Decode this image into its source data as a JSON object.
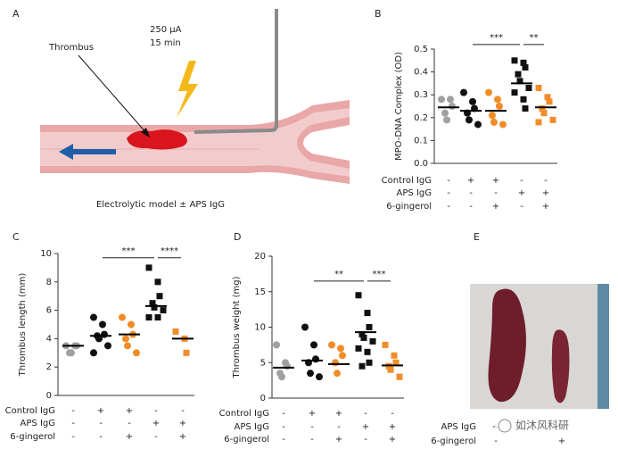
{
  "panel_a": {
    "label": "A",
    "current": "250 μA",
    "duration": "15 min",
    "thrombus": "Thrombus",
    "caption": "Electrolytic model ± APS IgG"
  },
  "chart_data": [
    {
      "type": "scatter",
      "label": "B",
      "ylabel": "MPO-DNA Complex (OD)",
      "ylim": [
        0,
        0.5
      ],
      "yticks": [
        {
          "value": 0,
          "label": "0.0"
        },
        0.1,
        0.2,
        0.3,
        0.4,
        0.5
      ],
      "series": [
        {
          "color": "#a0a0a0",
          "marker": "circle",
          "values": [
            0.28,
            0.28,
            0.25,
            0.22,
            0.19
          ],
          "mean": 0.245
        },
        {
          "color": "#111111",
          "marker": "circle",
          "values": [
            0.31,
            0.27,
            0.24,
            0.22,
            0.19,
            0.17
          ],
          "mean": 0.23
        },
        {
          "color": "#f28c28",
          "marker": "circle",
          "values": [
            0.31,
            0.28,
            0.25,
            0.21,
            0.18,
            0.17
          ],
          "mean": 0.23
        },
        {
          "color": "#111111",
          "marker": "square",
          "values": [
            0.45,
            0.44,
            0.42,
            0.39,
            0.36,
            0.33,
            0.31,
            0.28,
            0.24
          ],
          "mean": 0.35
        },
        {
          "color": "#f28c28",
          "marker": "square",
          "values": [
            0.33,
            0.29,
            0.27,
            0.24,
            0.22,
            0.19,
            0.18
          ],
          "mean": 0.245
        }
      ],
      "conditions": [
        {
          "name": "Control IgG",
          "signs": [
            "-",
            "+",
            "+",
            "-",
            "-"
          ]
        },
        {
          "name": "APS IgG",
          "signs": [
            "-",
            "-",
            "-",
            "+",
            "+"
          ]
        },
        {
          "name": "6-gingerol",
          "signs": [
            "-",
            "-",
            "+",
            "-",
            "+"
          ]
        }
      ],
      "annotations": [
        {
          "from": 1,
          "to": 3,
          "y": 0.52,
          "label": "***"
        },
        {
          "from": 3,
          "to": 4,
          "y": 0.52,
          "label": "**"
        }
      ]
    },
    {
      "type": "scatter",
      "label": "C",
      "ylabel": "Thrombus length  (mm)",
      "ylim": [
        0,
        10
      ],
      "yticks": [
        0,
        2,
        4,
        6,
        8,
        10
      ],
      "series": [
        {
          "color": "#a0a0a0",
          "marker": "circle",
          "values": [
            3.5,
            3.5,
            3.5,
            3,
            3
          ],
          "mean": 3.5
        },
        {
          "color": "#111111",
          "marker": "circle",
          "values": [
            5.5,
            5,
            4.3,
            4.2,
            4,
            3.5,
            3
          ],
          "mean": 4.2
        },
        {
          "color": "#f28c28",
          "marker": "circle",
          "values": [
            5.5,
            5,
            4.3,
            4,
            3.5,
            3
          ],
          "mean": 4.3
        },
        {
          "color": "#111111",
          "marker": "square",
          "values": [
            9,
            8,
            7,
            6.5,
            6.2,
            6,
            5.5,
            5.5
          ],
          "mean": 6.3
        },
        {
          "color": "#f28c28",
          "marker": "square",
          "values": [
            4.5,
            4,
            3
          ],
          "mean": 4
        }
      ],
      "conditions": [
        {
          "name": "Control IgG",
          "signs": [
            "-",
            "+",
            "+",
            "-",
            "-"
          ]
        },
        {
          "name": "APS IgG",
          "signs": [
            "-",
            "-",
            "-",
            "+",
            "+"
          ]
        },
        {
          "name": "6-gingerol",
          "signs": [
            "-",
            "-",
            "+",
            "-",
            "+"
          ]
        }
      ],
      "annotations": [
        {
          "from": 1,
          "to": 3,
          "y": 9.7,
          "label": "***"
        },
        {
          "from": 3,
          "to": 4,
          "y": 9.7,
          "label": "****"
        }
      ]
    },
    {
      "type": "scatter",
      "label": "D",
      "ylabel": "Thrombus weight (mg)",
      "ylim": [
        0,
        20
      ],
      "yticks": [
        0,
        5,
        10,
        15,
        20
      ],
      "series": [
        {
          "color": "#a0a0a0",
          "marker": "circle",
          "values": [
            7.5,
            5,
            4.5,
            3.5,
            3
          ],
          "mean": 4.3
        },
        {
          "color": "#111111",
          "marker": "circle",
          "values": [
            10,
            7.5,
            5.5,
            5,
            3.5,
            3
          ],
          "mean": 5.3
        },
        {
          "color": "#f28c28",
          "marker": "circle",
          "values": [
            7.5,
            7,
            6,
            5,
            3.5
          ],
          "mean": 4.8
        },
        {
          "color": "#111111",
          "marker": "square",
          "values": [
            14.5,
            12,
            10,
            9,
            8.5,
            8,
            7,
            6.5,
            5,
            4.5
          ],
          "mean": 9.3
        },
        {
          "color": "#f28c28",
          "marker": "square",
          "values": [
            7.5,
            6,
            5,
            4.5,
            4,
            3
          ],
          "mean": 4.6
        }
      ],
      "conditions": [
        {
          "name": "Control IgG",
          "signs": [
            "-",
            "+",
            "+",
            "-",
            "-"
          ]
        },
        {
          "name": "APS IgG",
          "signs": [
            "-",
            "-",
            "-",
            "+",
            "+"
          ]
        },
        {
          "name": "6-gingerol",
          "signs": [
            "-",
            "-",
            "+",
            "-",
            "+"
          ]
        }
      ],
      "annotations": [
        {
          "from": 1,
          "to": 3,
          "y": 16.5,
          "label": "**"
        },
        {
          "from": 3,
          "to": 4,
          "y": 16.5,
          "label": "***"
        }
      ]
    }
  ],
  "panel_e": {
    "label": "E",
    "conditions": [
      {
        "name": "APS IgG",
        "signs": [
          "+",
          "+"
        ]
      },
      {
        "name": "6-gingerol",
        "signs": [
          "-",
          "+"
        ]
      }
    ],
    "watermark": "如沐风科研"
  }
}
